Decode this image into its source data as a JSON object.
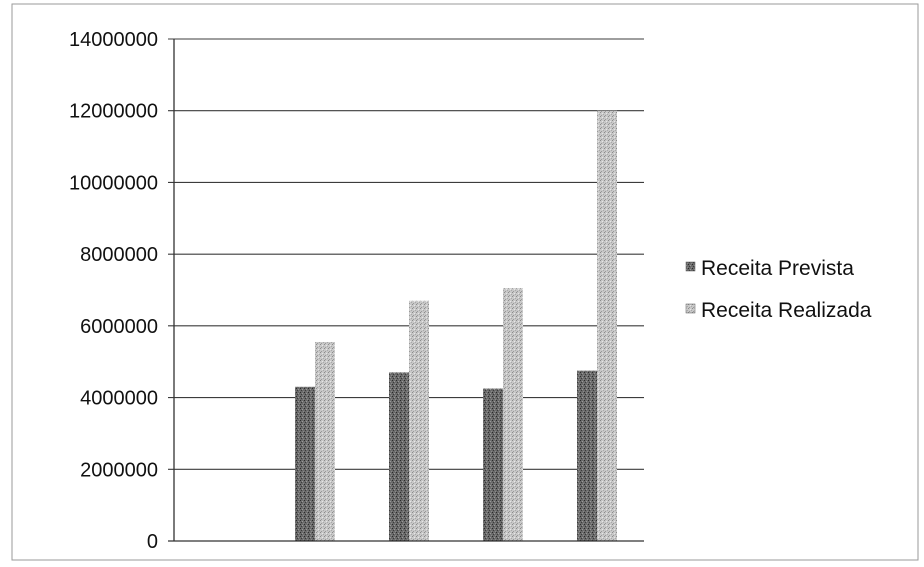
{
  "chart_data": {
    "type": "bar",
    "categories": [
      "",
      "",
      "",
      "",
      ""
    ],
    "series": [
      {
        "name": "Receita Prevista",
        "values": [
          0,
          4300000,
          4700000,
          4250000,
          4750000
        ],
        "color": "#5e5e5e",
        "pattern": "dense-speckle"
      },
      {
        "name": "Receita Realizada",
        "values": [
          0,
          5550000,
          6700000,
          7050000,
          12000000
        ],
        "color": "#bdbdbd",
        "pattern": "light-speckle"
      }
    ],
    "title": "",
    "xlabel": "",
    "ylabel": "",
    "ylim": [
      0,
      14000000
    ],
    "yticks": [
      {
        "value": 0,
        "label": "0"
      },
      {
        "value": 2000000,
        "label": "2000000"
      },
      {
        "value": 4000000,
        "label": "4000000"
      },
      {
        "value": 6000000,
        "label": "6000000"
      },
      {
        "value": 8000000,
        "label": "8000000"
      },
      {
        "value": 10000000,
        "label": "10000000"
      },
      {
        "value": 12000000,
        "label": "12000000"
      },
      {
        "value": 14000000,
        "label": "14000000"
      }
    ],
    "grid": true,
    "legend_position": "right"
  }
}
